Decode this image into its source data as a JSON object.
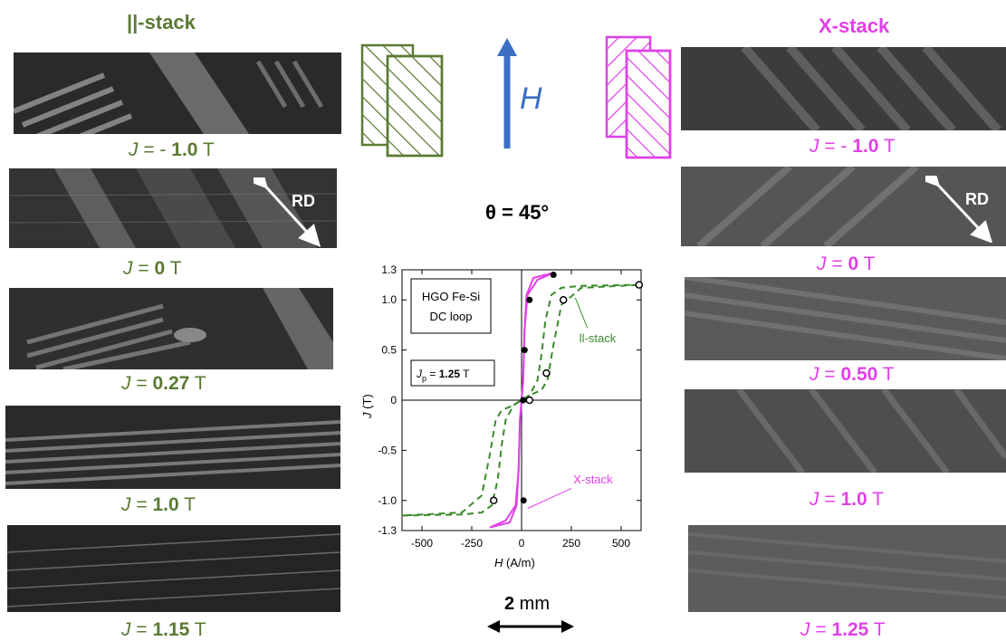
{
  "left_column": {
    "title": "||-stack",
    "captions": [
      {
        "j": "J",
        "eq": " = - ",
        "val": "1.0",
        "unit": " T"
      },
      {
        "j": "J",
        "eq": " = ",
        "val": "0",
        "unit": " T"
      },
      {
        "j": "J",
        "eq": " = ",
        "val": "0.27",
        "unit": " T"
      },
      {
        "j": "J",
        "eq": " = ",
        "val": "1.0",
        "unit": " T"
      },
      {
        "j": "J",
        "eq": " = ",
        "val": "1.15",
        "unit": " T"
      }
    ],
    "rd_label": "RD"
  },
  "right_column": {
    "title": "X-stack",
    "captions": [
      {
        "j": "J",
        "eq": " = - ",
        "val": "1.0",
        "unit": " T"
      },
      {
        "j": "J",
        "eq": " = ",
        "val": "0",
        "unit": " T"
      },
      {
        "j": "J",
        "eq": " = ",
        "val": "0.50",
        "unit": " T"
      },
      {
        "j": "J",
        "eq": " = ",
        "val": "1.0",
        "unit": " T"
      },
      {
        "j": "J",
        "eq": " = ",
        "val": "1.25",
        "unit": " T"
      }
    ],
    "rd_label": "RD"
  },
  "center": {
    "field_label": "H",
    "angle_text": "θ = 45°",
    "scale_value": "2",
    "scale_unit": " mm"
  },
  "colors": {
    "green": "#5a7a34",
    "magenta": "#e040e8",
    "blue": "#3a6fc4",
    "dashed_green": "#3a8a2a"
  },
  "chart_data": {
    "type": "line",
    "xlabel": "H",
    "xlabel_unit": "(A/m)",
    "ylabel": "J",
    "ylabel_unit": "(T)",
    "xlim": [
      -600,
      600
    ],
    "ylim": [
      -1.3,
      1.3
    ],
    "xticks": [
      -500,
      -250,
      0,
      250,
      500
    ],
    "yticks": [
      -1.3,
      -1.0,
      -0.5,
      0,
      0.5,
      1.0,
      1.3
    ],
    "ytick_labels": [
      "-1.3",
      "-1.0",
      "-0.5",
      "0",
      "0.5",
      "1.0",
      "1.3"
    ],
    "legend_box": {
      "line1": "HGO Fe-Si",
      "line2": "DC loop"
    },
    "jp_box": {
      "j": "J",
      "sub": "p",
      "eq": " = ",
      "val": "1.25",
      "unit": " T"
    },
    "annotations": [
      {
        "text": "ll-stack",
        "color": "#3a8a2a"
      },
      {
        "text": "X-stack",
        "color": "#e040e8"
      }
    ],
    "series": [
      {
        "name": "ll-stack",
        "style": "dashed",
        "color": "#3a8a2a",
        "upper": [
          [
            600,
            1.15
          ],
          [
            300,
            1.14
          ],
          [
            200,
            1.12
          ],
          [
            150,
            1.05
          ],
          [
            120,
            0.8
          ],
          [
            100,
            0.45
          ],
          [
            80,
            0.2
          ],
          [
            40,
            0.05
          ],
          [
            0,
            0.0
          ],
          [
            -40,
            -0.05
          ],
          [
            -100,
            -0.1
          ],
          [
            -130,
            -0.2
          ],
          [
            -160,
            -0.55
          ],
          [
            -200,
            -0.95
          ],
          [
            -300,
            -1.12
          ],
          [
            -600,
            -1.15
          ]
        ],
        "lower": [
          [
            -600,
            -1.15
          ],
          [
            -300,
            -1.14
          ],
          [
            -200,
            -1.12
          ],
          [
            -150,
            -1.05
          ],
          [
            -120,
            -0.8
          ],
          [
            -100,
            -0.45
          ],
          [
            -80,
            -0.2
          ],
          [
            -40,
            -0.05
          ],
          [
            0,
            0.0
          ],
          [
            40,
            0.05
          ],
          [
            100,
            0.1
          ],
          [
            130,
            0.2
          ],
          [
            160,
            0.55
          ],
          [
            200,
            0.95
          ],
          [
            300,
            1.12
          ],
          [
            600,
            1.15
          ]
        ]
      },
      {
        "name": "X-stack",
        "style": "solid",
        "color": "#e040e8",
        "upper": [
          [
            160,
            1.27
          ],
          [
            60,
            1.22
          ],
          [
            25,
            1.05
          ],
          [
            15,
            0.7
          ],
          [
            8,
            0.2
          ],
          [
            0,
            0.0
          ],
          [
            -8,
            -0.2
          ],
          [
            -15,
            -0.7
          ],
          [
            -30,
            -1.05
          ],
          [
            -80,
            -1.2
          ],
          [
            -160,
            -1.27
          ]
        ],
        "lower": [
          [
            -160,
            -1.27
          ],
          [
            -60,
            -1.22
          ],
          [
            -25,
            -1.05
          ],
          [
            -15,
            -0.7
          ],
          [
            -8,
            -0.2
          ],
          [
            0,
            0.0
          ],
          [
            8,
            0.2
          ],
          [
            15,
            0.7
          ],
          [
            30,
            1.05
          ],
          [
            80,
            1.2
          ],
          [
            160,
            1.27
          ]
        ]
      }
    ],
    "points_filled": [
      [
        160,
        1.25
      ],
      [
        40,
        1.0
      ],
      [
        15,
        0.5
      ],
      [
        8,
        0.0
      ],
      [
        10,
        -1.0
      ]
    ],
    "points_open": [
      [
        590,
        1.15
      ],
      [
        210,
        1.0
      ],
      [
        125,
        0.27
      ],
      [
        40,
        0.0
      ],
      [
        -140,
        -1.0
      ]
    ]
  }
}
